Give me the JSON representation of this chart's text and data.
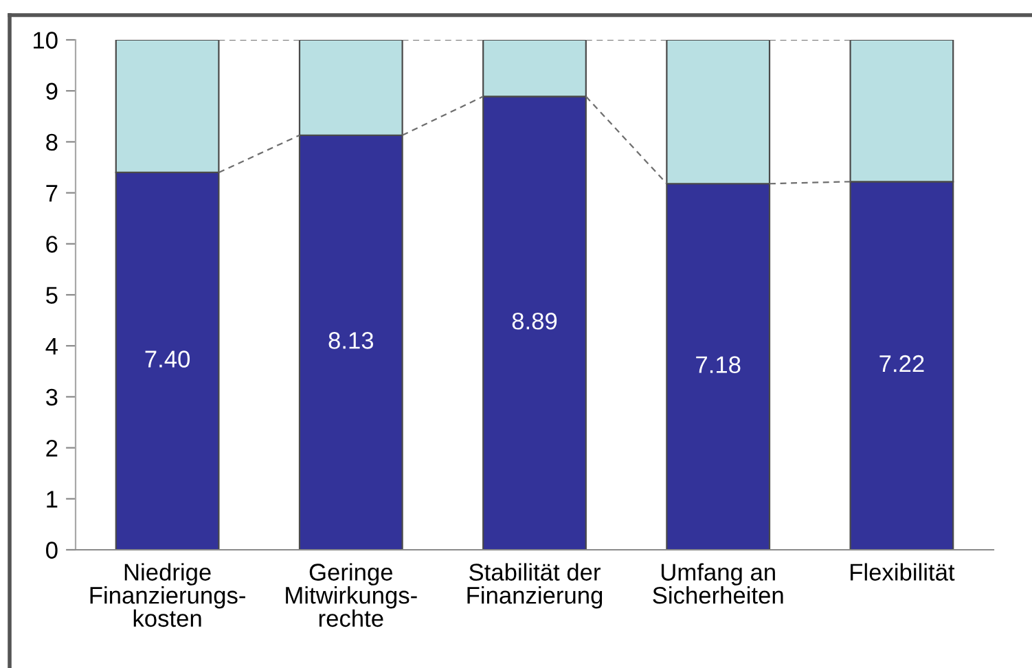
{
  "chart_data": {
    "type": "bar",
    "stacked": true,
    "categories": [
      "Niedrige\nFinanzierungs-\nkosten",
      "Geringe\nMitwirkungs-\nrechte",
      "Stabilität der\nFinanzierung",
      "Umfang an\nSicherheiten",
      "Flexibilität"
    ],
    "series": [
      {
        "color": "#333399",
        "values": [
          7.4,
          8.13,
          8.89,
          7.18,
          7.22
        ],
        "value_labels": [
          "7.40",
          "8.13",
          "8.89",
          "7.18",
          "7.22"
        ]
      },
      {
        "color": "#b9e0e3",
        "values": [
          2.6,
          1.87,
          1.11,
          2.82,
          2.78
        ]
      }
    ],
    "ylim": [
      0,
      10
    ],
    "yticks": [
      0,
      1,
      2,
      3,
      4,
      5,
      6,
      7,
      8,
      9,
      10
    ],
    "grid": false,
    "line_style": "dashed"
  }
}
